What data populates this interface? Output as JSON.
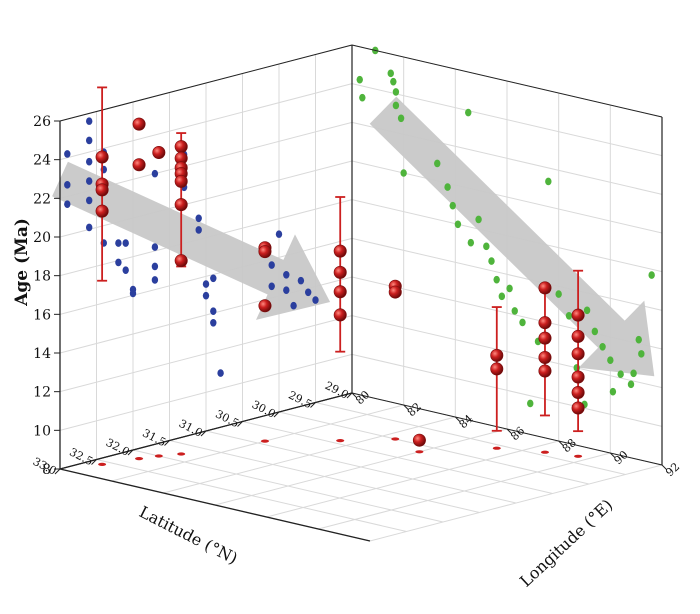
{
  "chart_data": {
    "type": "scatter",
    "title": "",
    "zlabel": "Age (Ma)",
    "xlabel": "Latitude (°N)",
    "ylabel": "Longitude (°E)",
    "zlim": [
      8,
      26
    ],
    "xlim": [
      29.0,
      33.0
    ],
    "ylim": [
      80,
      92
    ],
    "z_ticks": [
      "8",
      "10",
      "12",
      "14",
      "16",
      "18",
      "20",
      "22",
      "24",
      "26"
    ],
    "x_ticks": [
      "33.0",
      "32.5",
      "32.0",
      "31.5",
      "31.0",
      "30.5",
      "30.0",
      "29.5",
      "29.0"
    ],
    "y_ticks": [
      "80",
      "82",
      "84",
      "86",
      "88",
      "90",
      "92"
    ],
    "grid": true,
    "colors": {
      "age_data": "#cc1f1f",
      "latitude_projection": "#2b3f9e",
      "longitude_projection": "#4fb43c",
      "trend_arrow": "#c8c8c8"
    },
    "series": [
      {
        "role": "age vs latitude and longitude",
        "points": [
          {
            "lat": 32.6,
            "lon": 80.5,
            "age": 23.9
          },
          {
            "lat": 32.6,
            "lon": 80.5,
            "age": 22.5
          },
          {
            "lat": 32.6,
            "lon": 80.5,
            "age": 22.2
          },
          {
            "lat": 32.6,
            "lon": 80.5,
            "age": 21.1
          },
          {
            "lat": 32.2,
            "lon": 80.8,
            "age": 25.3
          },
          {
            "lat": 32.2,
            "lon": 80.8,
            "age": 23.2
          },
          {
            "lat": 32.0,
            "lon": 81.0,
            "age": 23.7
          },
          {
            "lat": 31.8,
            "lon": 81.3,
            "age": 23.9
          },
          {
            "lat": 31.8,
            "lon": 81.3,
            "age": 23.3
          },
          {
            "lat": 31.8,
            "lon": 81.3,
            "age": 22.8
          },
          {
            "lat": 31.8,
            "lon": 81.3,
            "age": 22.5
          },
          {
            "lat": 31.8,
            "lon": 81.3,
            "age": 22.1
          },
          {
            "lat": 31.8,
            "lon": 81.3,
            "age": 20.9
          },
          {
            "lat": 31.8,
            "lon": 81.3,
            "age": 18.0
          },
          {
            "lat": 30.9,
            "lon": 82.0,
            "age": 18.0
          },
          {
            "lat": 30.9,
            "lon": 82.0,
            "age": 17.8
          },
          {
            "lat": 30.4,
            "lon": 83.5,
            "age": 17.8
          },
          {
            "lat": 30.4,
            "lon": 83.5,
            "age": 16.7
          },
          {
            "lat": 30.4,
            "lon": 83.5,
            "age": 15.7
          },
          {
            "lat": 30.4,
            "lon": 83.5,
            "age": 14.5
          },
          {
            "lat": 30.0,
            "lon": 84.5,
            "age": 15.9
          },
          {
            "lat": 30.0,
            "lon": 84.5,
            "age": 15.6
          },
          {
            "lat": 30.9,
            "lon": 82.0,
            "age": 15.0
          },
          {
            "lat": 29.6,
            "lon": 87.3,
            "age": 12.8
          },
          {
            "lat": 29.6,
            "lon": 87.3,
            "age": 12.1
          },
          {
            "lat": 29.4,
            "lon": 88.6,
            "age": 16.5
          },
          {
            "lat": 29.4,
            "lon": 88.6,
            "age": 14.7
          },
          {
            "lat": 29.4,
            "lon": 88.6,
            "age": 13.9
          },
          {
            "lat": 29.4,
            "lon": 88.6,
            "age": 12.9
          },
          {
            "lat": 29.4,
            "lon": 88.6,
            "age": 12.2
          },
          {
            "lat": 29.3,
            "lon": 89.6,
            "age": 15.3
          },
          {
            "lat": 29.3,
            "lon": 89.6,
            "age": 14.2
          },
          {
            "lat": 29.3,
            "lon": 89.6,
            "age": 13.3
          },
          {
            "lat": 29.3,
            "lon": 89.6,
            "age": 12.1
          },
          {
            "lat": 29.3,
            "lon": 89.6,
            "age": 11.3
          },
          {
            "lat": 29.3,
            "lon": 89.6,
            "age": 10.5
          },
          {
            "lat": 30.2,
            "lon": 86.0,
            "age": 8.6
          }
        ],
        "error_bars": [
          {
            "lat": 32.6,
            "lon": 80.5,
            "low": 17.5,
            "high": 27.5
          },
          {
            "lat": 31.8,
            "lon": 81.3,
            "low": 17.7,
            "high": 24.6
          },
          {
            "lat": 30.4,
            "lon": 83.5,
            "low": 12.6,
            "high": 20.6
          },
          {
            "lat": 29.6,
            "lon": 87.3,
            "low": 8.9,
            "high": 15.3
          },
          {
            "lat": 29.4,
            "lon": 88.6,
            "low": 9.9,
            "high": 16.3
          },
          {
            "lat": 29.3,
            "lon": 89.6,
            "low": 9.3,
            "high": 17.6
          }
        ]
      }
    ],
    "latitude_projection": [
      {
        "lat": 32.9,
        "age": 24.2
      },
      {
        "lat": 32.9,
        "age": 22.6
      },
      {
        "lat": 32.9,
        "age": 21.6
      },
      {
        "lat": 32.6,
        "age": 25.6
      },
      {
        "lat": 32.6,
        "age": 24.6
      },
      {
        "lat": 32.6,
        "age": 23.5
      },
      {
        "lat": 32.6,
        "age": 22.5
      },
      {
        "lat": 32.6,
        "age": 21.5
      },
      {
        "lat": 32.6,
        "age": 20.1
      },
      {
        "lat": 32.4,
        "age": 23.8
      },
      {
        "lat": 32.4,
        "age": 22.9
      },
      {
        "lat": 32.4,
        "age": 19.1
      },
      {
        "lat": 32.2,
        "age": 18.9
      },
      {
        "lat": 32.2,
        "age": 17.9
      },
      {
        "lat": 32.1,
        "age": 18.8
      },
      {
        "lat": 32.1,
        "age": 17.4
      },
      {
        "lat": 32.0,
        "age": 16.3
      },
      {
        "lat": 32.0,
        "age": 16.1
      },
      {
        "lat": 31.7,
        "age": 18.2
      },
      {
        "lat": 31.7,
        "age": 17.2
      },
      {
        "lat": 31.7,
        "age": 16.5
      },
      {
        "lat": 31.7,
        "age": 22.0
      },
      {
        "lat": 31.3,
        "age": 22.6
      },
      {
        "lat": 31.3,
        "age": 20.9
      },
      {
        "lat": 31.1,
        "age": 19.1
      },
      {
        "lat": 31.1,
        "age": 18.5
      },
      {
        "lat": 31.0,
        "age": 15.6
      },
      {
        "lat": 31.0,
        "age": 15.0
      },
      {
        "lat": 30.9,
        "age": 14.1
      },
      {
        "lat": 30.9,
        "age": 13.5
      },
      {
        "lat": 30.9,
        "age": 15.8
      },
      {
        "lat": 30.8,
        "age": 10.8
      },
      {
        "lat": 30.2,
        "age": 16.7
      },
      {
        "lat": 30.1,
        "age": 15.7
      },
      {
        "lat": 30.1,
        "age": 14.6
      },
      {
        "lat": 30.0,
        "age": 17.2
      },
      {
        "lat": 29.9,
        "age": 15.0
      },
      {
        "lat": 29.9,
        "age": 14.2
      },
      {
        "lat": 29.8,
        "age": 13.3
      },
      {
        "lat": 29.7,
        "age": 14.5
      },
      {
        "lat": 29.6,
        "age": 13.8
      },
      {
        "lat": 29.5,
        "age": 13.3
      }
    ],
    "longitude_projection": [
      {
        "lon": 80.9,
        "age": 26.0
      },
      {
        "lon": 81.5,
        "age": 25.0
      },
      {
        "lon": 81.6,
        "age": 24.6
      },
      {
        "lon": 81.7,
        "age": 24.1
      },
      {
        "lon": 81.7,
        "age": 23.4
      },
      {
        "lon": 81.9,
        "age": 22.8
      },
      {
        "lon": 82.0,
        "age": 20.0
      },
      {
        "lon": 80.4,
        "age": 23.4
      },
      {
        "lon": 80.3,
        "age": 24.3
      },
      {
        "lon": 84.5,
        "age": 23.9
      },
      {
        "lon": 83.3,
        "age": 20.9
      },
      {
        "lon": 83.7,
        "age": 19.8
      },
      {
        "lon": 83.9,
        "age": 18.9
      },
      {
        "lon": 84.1,
        "age": 18.0
      },
      {
        "lon": 84.6,
        "age": 17.2
      },
      {
        "lon": 84.9,
        "age": 18.5
      },
      {
        "lon": 85.2,
        "age": 17.2
      },
      {
        "lon": 85.4,
        "age": 16.5
      },
      {
        "lon": 85.6,
        "age": 15.6
      },
      {
        "lon": 85.8,
        "age": 14.8
      },
      {
        "lon": 86.1,
        "age": 15.3
      },
      {
        "lon": 86.3,
        "age": 14.2
      },
      {
        "lon": 86.6,
        "age": 13.7
      },
      {
        "lon": 87.2,
        "age": 12.9
      },
      {
        "lon": 87.6,
        "age": 21.3
      },
      {
        "lon": 88.0,
        "age": 15.6
      },
      {
        "lon": 88.4,
        "age": 14.6
      },
      {
        "lon": 89.1,
        "age": 15.1
      },
      {
        "lon": 89.4,
        "age": 14.1
      },
      {
        "lon": 89.7,
        "age": 13.4
      },
      {
        "lon": 90.0,
        "age": 12.8
      },
      {
        "lon": 90.4,
        "age": 12.2
      },
      {
        "lon": 90.8,
        "age": 11.8
      },
      {
        "lon": 91.1,
        "age": 14.2
      },
      {
        "lon": 91.2,
        "age": 13.5
      },
      {
        "lon": 91.6,
        "age": 17.7
      },
      {
        "lon": 89.0,
        "age": 10.2
      },
      {
        "lon": 90.1,
        "age": 11.2
      },
      {
        "lon": 90.9,
        "age": 12.4
      },
      {
        "lon": 88.7,
        "age": 12.0
      },
      {
        "lon": 86.9,
        "age": 9.6
      }
    ],
    "trend_arrows": [
      {
        "plane": "age-latitude",
        "from": {
          "lat": 33.0,
          "age": 23.0
        },
        "to": {
          "lat": 29.3,
          "age": 13.0
        }
      },
      {
        "plane": "age-longitude",
        "from": {
          "lon": 81.2,
          "age": 23.0
        },
        "to": {
          "lon": 91.7,
          "age": 12.5
        }
      }
    ]
  }
}
